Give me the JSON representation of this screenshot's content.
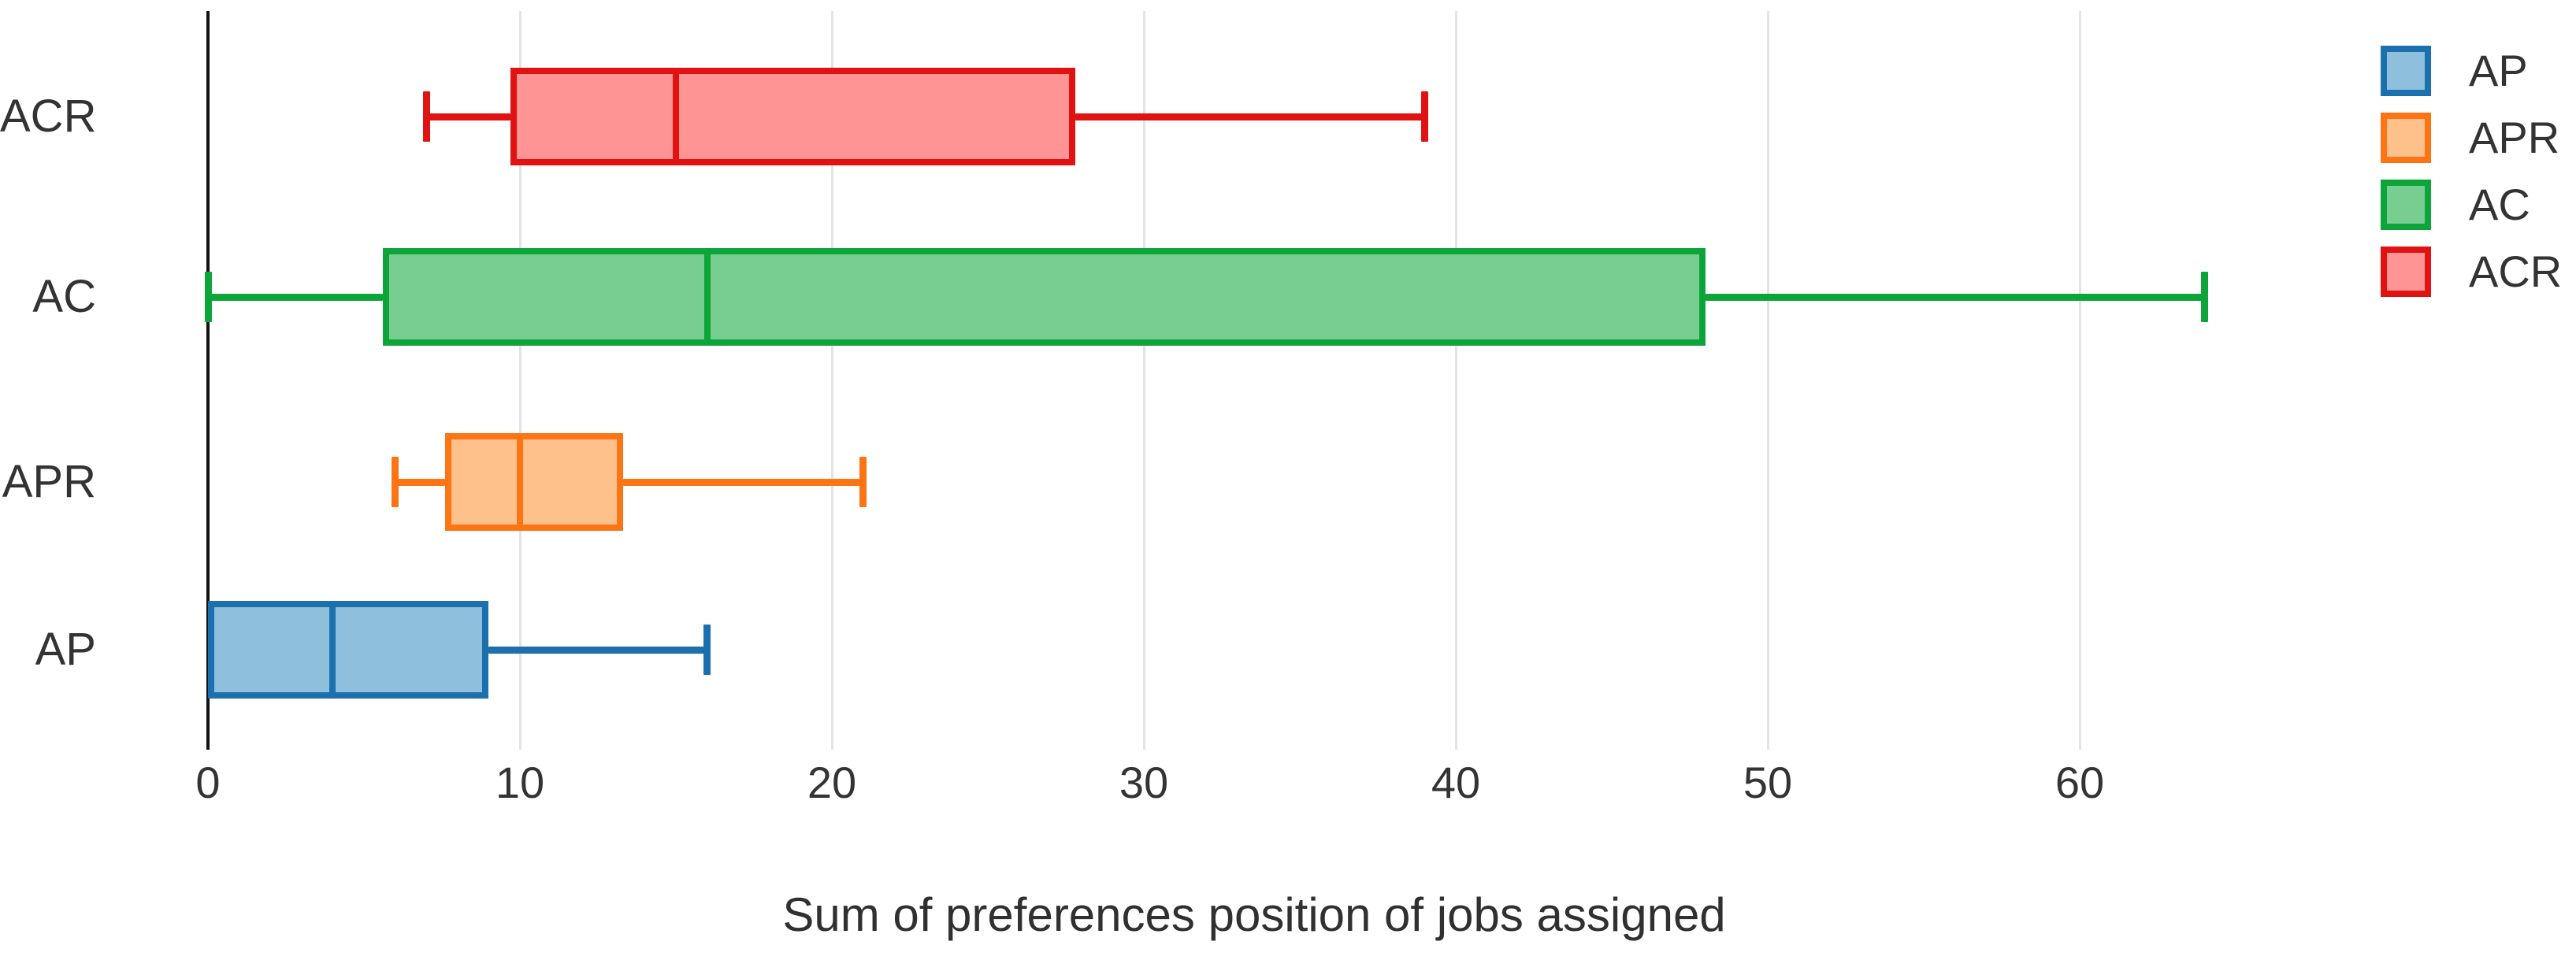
{
  "figure": {
    "xaxis_title": "Sum of preferences position of jobs assigned"
  },
  "chart_data": {
    "type": "boxplot",
    "orientation": "horizontal",
    "title": "",
    "xlabel": "Sum of preferences position of jobs assigned",
    "ylabel": "",
    "x_ticks": [
      0,
      10,
      20,
      30,
      40,
      50,
      60
    ],
    "x_range": [
      0,
      67
    ],
    "grid": true,
    "legend_position": "top-right",
    "row_order_top_to_bottom": [
      "ACR",
      "AC",
      "APR",
      "AP"
    ],
    "series": [
      {
        "name": "AP",
        "color": "#1c70ae",
        "fill": "#8ec0de",
        "min": 0,
        "q1": 0,
        "median": 4,
        "q3": 9,
        "max": 16
      },
      {
        "name": "APR",
        "color": "#fd7414",
        "fill": "#ffc18b",
        "min": 6,
        "q1": 7.6,
        "median": 10,
        "q3": 13.3,
        "max": 21
      },
      {
        "name": "AC",
        "color": "#0da539",
        "fill": "#78cd90",
        "min": 0,
        "q1": 5.6,
        "median": 16,
        "q3": 48,
        "max": 64
      },
      {
        "name": "ACR",
        "color": "#e11212",
        "fill": "#ff9494",
        "min": 7,
        "q1": 9.7,
        "median": 15,
        "q3": 27.8,
        "max": 39
      }
    ]
  }
}
